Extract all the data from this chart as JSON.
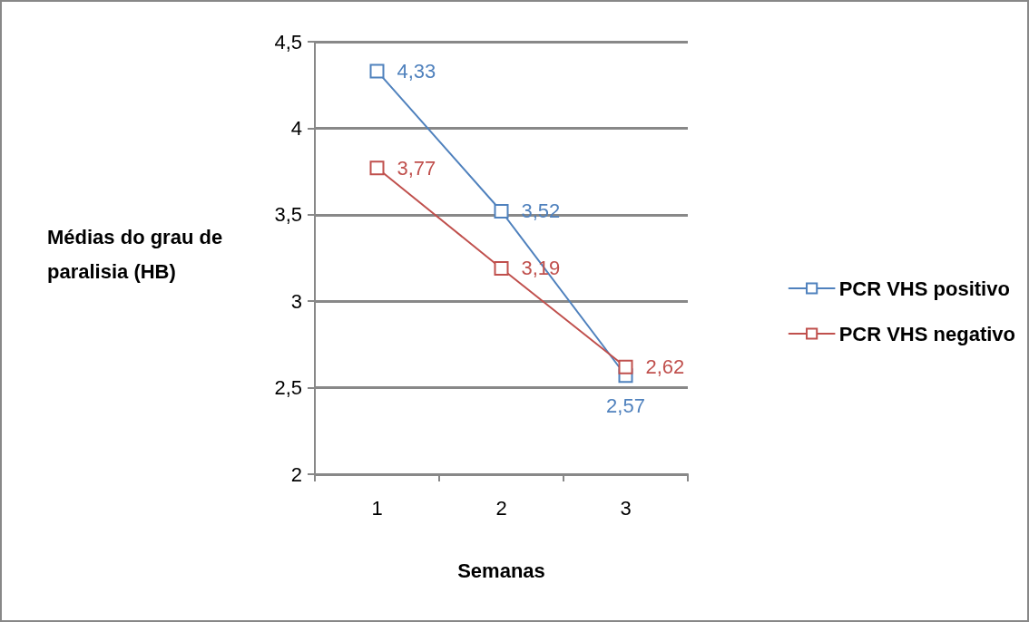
{
  "chart_data": {
    "type": "line",
    "xlabel": "Semanas",
    "ylabel": "Médias do grau de paralisia (HB)",
    "categories": [
      "1",
      "2",
      "3"
    ],
    "series": [
      {
        "name": "PCR VHS positivo",
        "color": "#4f81bd",
        "values": [
          4.33,
          3.52,
          2.57
        ],
        "value_labels": [
          "4,33",
          "3,52",
          "2,57"
        ]
      },
      {
        "name": "PCR VHS negativo",
        "color": "#c0504d",
        "values": [
          3.77,
          3.19,
          2.62
        ],
        "value_labels": [
          "3,77",
          "3,19",
          "2,62"
        ]
      }
    ],
    "ylim": [
      2,
      4.5
    ],
    "yticks": [
      2,
      {
        "value": 2.5,
        "label": "2,5"
      },
      3,
      {
        "value": 3.5,
        "label": "3,5"
      },
      4,
      {
        "value": 4.5,
        "label": "4,5"
      }
    ],
    "grid": "y",
    "legend": "right",
    "marker": "square",
    "line_style": "solid"
  }
}
